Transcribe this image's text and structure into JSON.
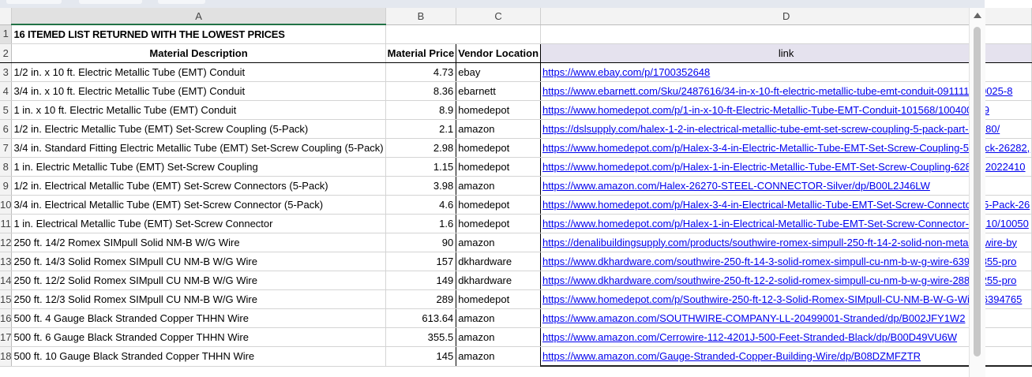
{
  "columns": [
    "A",
    "B",
    "C",
    "D"
  ],
  "title": "16 ITEMED LIST RETURNED WITH THE LOWEST PRICES",
  "headers": {
    "description": "Material Description",
    "price": "Material Price",
    "vendor": "Vendor Location",
    "link": "link"
  },
  "rows": [
    {
      "n": "3",
      "desc": "1/2 in. x 10 ft. Electric Metallic Tube (EMT) Conduit",
      "price": "4.73",
      "vendor": "ebay",
      "link": "https://www.ebay.com/p/1700352648"
    },
    {
      "n": "4",
      "desc": "3/4 in. x 10 ft. Electric Metallic Tube (EMT) Conduit",
      "price": "8.36",
      "vendor": "ebarnett",
      "link": "https://www.ebarnett.com/Sku/2487616/34-in-x-10-ft-electric-metallic-tube-emt-conduit-091111020025-8"
    },
    {
      "n": "5",
      "desc": "1 in. x 10 ft. Electric Metallic Tube (EMT) Conduit",
      "price": "8.9",
      "vendor": "homedepot",
      "link": "https://www.homedepot.com/p/1-in-x-10-ft-Electric-Metallic-Tube-EMT-Conduit-101568/100400409"
    },
    {
      "n": "6",
      "desc": "1/2 in. Electric Metallic Tube (EMT) Set-Screw Coupling (5-Pack)",
      "price": "2.1",
      "vendor": "amazon",
      "link": "https://dslsupply.com/halex-1-2-in-electrical-metallic-tube-emt-set-screw-coupling-5-pack-part-26280/"
    },
    {
      "n": "7",
      "desc": "3/4 in. Standard Fitting Electric Metallic Tube (EMT) Set-Screw Coupling (5-Pack)",
      "price": "2.98",
      "vendor": "homedepot",
      "link": "https://www.homedepot.com/p/Halex-3-4-in-Electric-Metallic-Tube-EMT-Set-Screw-Coupling-5-Pack-26282,"
    },
    {
      "n": "8",
      "desc": "1 in. Electric Metallic Tube (EMT) Set-Screw Coupling",
      "price": "1.15",
      "vendor": "homedepot",
      "link": "https://www.homedepot.com/p/Halex-1-in-Electric-Metallic-Tube-EMT-Set-Screw-Coupling-62810/2022410"
    },
    {
      "n": "9",
      "desc": "1/2 in. Electrical Metallic Tube (EMT) Set-Screw Connectors (5-Pack)",
      "price": "3.98",
      "vendor": "amazon",
      "link": "https://www.amazon.com/Halex-26270-STEEL-CONNECTOR-Silver/dp/B00L2J46LW"
    },
    {
      "n": "10",
      "desc": "3/4 in. Electrical Metallic Tube (EMT) Set-Screw Connector (5-Pack)",
      "price": "4.6",
      "vendor": "homedepot",
      "link": "https://www.homedepot.com/p/Halex-3-4-in-Electrical-Metallic-Tube-EMT-Set-Screw-Connectors-5-Pack-26"
    },
    {
      "n": "11",
      "desc": "1 in. Electrical Metallic Tube (EMT) Set-Screw Connector",
      "price": "1.6",
      "vendor": "homedepot",
      "link": "https://www.homedepot.com/p/Halex-1-in-Electrical-Metallic-Tube-EMT-Set-Screw-Connector-62710/10050"
    },
    {
      "n": "12",
      "desc": "250 ft. 14/2 Romex SIMpull Solid NM-B W/G Wire",
      "price": "90",
      "vendor": "amazon",
      "link": "https://denalibuildingsupply.com/products/southwire-romex-simpull-250-ft-14-2-solid-non-metallic-wire-by"
    },
    {
      "n": "13",
      "desc": "250 ft. 14/3 Solid Romex SIMpull CU NM-B W/G Wire",
      "price": "157",
      "vendor": "dkhardware",
      "link": "https://www.dkhardware.com/southwire-250-ft-14-3-solid-romex-simpull-cu-nm-b-w-g-wire-63946855-pro"
    },
    {
      "n": "14",
      "desc": "250 ft. 12/2 Solid Romex SIMpull CU NM-B W/G Wire",
      "price": "149",
      "vendor": "dkhardware",
      "link": "https://www.dkhardware.com/southwire-250-ft-12-2-solid-romex-simpull-cu-nm-b-w-g-wire-28828255-pro"
    },
    {
      "n": "15",
      "desc": "250 ft. 12/3 Solid Romex SIMpull CU NM-B W/G Wire",
      "price": "289",
      "vendor": "homedepot",
      "link": "https://www.homedepot.com/p/Southwire-250-ft-12-3-Solid-Romex-SIMpull-CU-NM-B-W-G-Wire-6394765"
    },
    {
      "n": "16",
      "desc": "500 ft. 4 Gauge Black Stranded Copper THHN Wire",
      "price": "613.64",
      "vendor": "amazon",
      "link": "https://www.amazon.com/SOUTHWIRE-COMPANY-LL-20499001-Stranded/dp/B002JFY1W2"
    },
    {
      "n": "17",
      "desc": "500 ft. 6 Gauge Black Stranded Copper THHN Wire",
      "price": "355.5",
      "vendor": "amazon",
      "link": "https://www.amazon.com/Cerrowire-112-4201J-500-Feet-Stranded-Black/dp/B00D49VU6W"
    },
    {
      "n": "18",
      "desc": "500 ft. 10 Gauge Black Stranded Copper THHN Wire",
      "price": "145",
      "vendor": "amazon",
      "link": "https://www.amazon.com/Gauge-Stranded-Copper-Building-Wire/dp/B08DZMFZTR"
    }
  ],
  "colors": {
    "title_green": "#00a14b",
    "header_d_fill": "#e5e2ee",
    "link_blue": "#0000ee",
    "selected_col_accent": "#217346"
  }
}
